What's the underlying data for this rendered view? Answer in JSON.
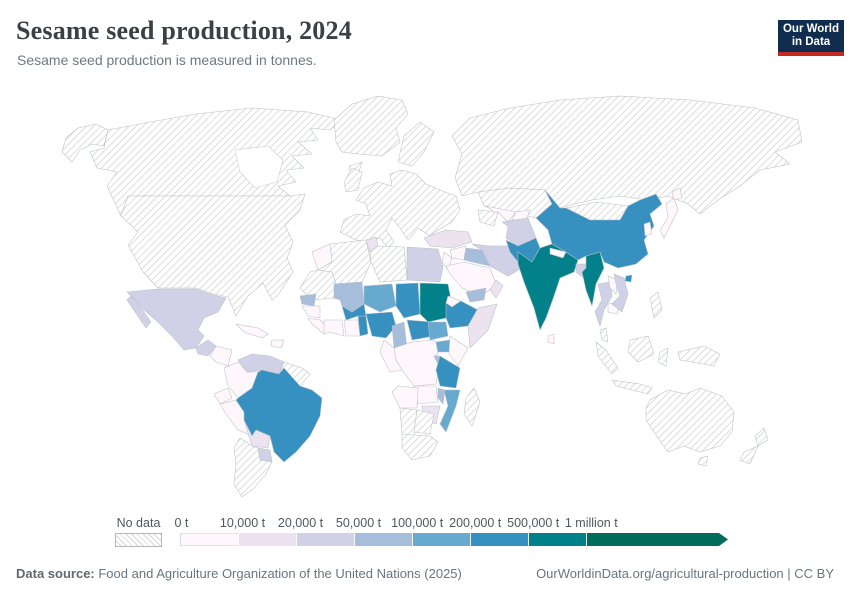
{
  "header": {
    "title": "Sesame seed production, 2024",
    "subtitle": "Sesame seed production is measured in tonnes.",
    "logo_line1": "Our World",
    "logo_line2": "in Data"
  },
  "footer": {
    "source_label": "Data source:",
    "source_text": " Food and Agriculture Organization of the United Nations (2025)",
    "right_text": "OurWorldinData.org/agricultural-production | CC BY"
  },
  "chart_data": {
    "type": "choropleth-world-map",
    "title": "Sesame seed production, 2024",
    "unit": "tonnes",
    "year": "2024",
    "legend": {
      "no_data_label": "No data",
      "tick_labels": [
        "0 t",
        "10,000 t",
        "20,000 t",
        "50,000 t",
        "100,000 t",
        "200,000 t",
        "500,000 t",
        "1 million t"
      ],
      "bin_colors": [
        "#fff7fb",
        "#ece2f0",
        "#d0d1e6",
        "#a6bddb",
        "#67a9cf",
        "#3690c0",
        "#02818a",
        "#016c59"
      ],
      "no_data_pattern": "diagonal-hatch",
      "bin_ranges": [
        "0-10,000 t",
        "10,000-20,000 t",
        "20,000-50,000 t",
        "50,000-100,000 t",
        "100,000-200,000 t",
        "200,000-500,000 t",
        "500,000 t-1 million t",
        "over 1 million t"
      ]
    },
    "regions": [
      {
        "id": "united-states",
        "name": "United States",
        "bin": -1
      },
      {
        "id": "canada",
        "name": "Canada",
        "bin": -1
      },
      {
        "id": "greenland",
        "name": "Greenland",
        "bin": -1
      },
      {
        "id": "iceland",
        "name": "Iceland",
        "bin": -1
      },
      {
        "id": "mexico",
        "name": "Mexico",
        "bin": 2
      },
      {
        "id": "guatemala",
        "name": "Guatemala",
        "bin": 2
      },
      {
        "id": "honduras-nicaragua",
        "name": "Honduras & Nicaragua",
        "bin": 0
      },
      {
        "id": "costa-rica-panama",
        "name": "Costa Rica & Panama",
        "bin": 0
      },
      {
        "id": "cuba",
        "name": "Cuba",
        "bin": 0
      },
      {
        "id": "hispaniola",
        "name": "Haiti & Dominican Republic",
        "bin": 0
      },
      {
        "id": "venezuela",
        "name": "Venezuela",
        "bin": 2
      },
      {
        "id": "colombia",
        "name": "Colombia",
        "bin": 0
      },
      {
        "id": "guianas",
        "name": "Guyana & Suriname",
        "bin": -1
      },
      {
        "id": "ecuador",
        "name": "Ecuador",
        "bin": 0
      },
      {
        "id": "peru",
        "name": "Peru",
        "bin": 0
      },
      {
        "id": "brazil",
        "name": "Brazil",
        "bin": 5
      },
      {
        "id": "bolivia",
        "name": "Bolivia",
        "bin": 1
      },
      {
        "id": "paraguay",
        "name": "Paraguay",
        "bin": 2
      },
      {
        "id": "argentina-chile",
        "name": "Argentina & Chile",
        "bin": -1
      },
      {
        "id": "united-kingdom",
        "name": "United Kingdom & Ireland",
        "bin": -1
      },
      {
        "id": "scandinavia",
        "name": "Scandinavia",
        "bin": -1
      },
      {
        "id": "europe",
        "name": "Europe",
        "bin": -1
      },
      {
        "id": "russia",
        "name": "Russia",
        "bin": -1
      },
      {
        "id": "kazakhstan",
        "name": "Kazakhstan",
        "bin": -1
      },
      {
        "id": "mongolia",
        "name": "Mongolia",
        "bin": -1
      },
      {
        "id": "turkmenistan",
        "name": "Turkmenistan",
        "bin": -1
      },
      {
        "id": "uzbekistan",
        "name": "Uzbekistan",
        "bin": 0
      },
      {
        "id": "kyrgyzstan-tajikistan",
        "name": "Kyrgyzstan & Tajikistan",
        "bin": 0
      },
      {
        "id": "turkey",
        "name": "Turkey",
        "bin": 1
      },
      {
        "id": "syria",
        "name": "Syria",
        "bin": 0
      },
      {
        "id": "levant",
        "name": "Jordan & Israel",
        "bin": 0
      },
      {
        "id": "iraq",
        "name": "Iraq",
        "bin": 3
      },
      {
        "id": "saudi-arabia",
        "name": "Saudi Arabia",
        "bin": 0
      },
      {
        "id": "yemen",
        "name": "Yemen",
        "bin": 3
      },
      {
        "id": "oman",
        "name": "Oman",
        "bin": 1
      },
      {
        "id": "iran",
        "name": "Iran",
        "bin": 2
      },
      {
        "id": "afghanistan",
        "name": "Afghanistan",
        "bin": 2
      },
      {
        "id": "pakistan",
        "name": "Pakistan",
        "bin": 5
      },
      {
        "id": "india",
        "name": "India",
        "bin": 6
      },
      {
        "id": "sri-lanka",
        "name": "Sri Lanka",
        "bin": 0
      },
      {
        "id": "nepal",
        "name": "Nepal",
        "bin": 0
      },
      {
        "id": "bangladesh",
        "name": "Bangladesh",
        "bin": 2
      },
      {
        "id": "myanmar",
        "name": "Myanmar",
        "bin": 6
      },
      {
        "id": "china",
        "name": "China",
        "bin": 5
      },
      {
        "id": "hainan",
        "name": "Hainan (China)",
        "bin": 5
      },
      {
        "id": "korea",
        "name": "Korea",
        "bin": 0
      },
      {
        "id": "japan",
        "name": "Japan",
        "bin": 0
      },
      {
        "id": "thailand",
        "name": "Thailand",
        "bin": 2
      },
      {
        "id": "laos",
        "name": "Laos",
        "bin": 0
      },
      {
        "id": "cambodia",
        "name": "Cambodia",
        "bin": 0
      },
      {
        "id": "vietnam",
        "name": "Vietnam",
        "bin": 2
      },
      {
        "id": "malaysia",
        "name": "Malaysia",
        "bin": -1
      },
      {
        "id": "indonesia",
        "name": "Indonesia",
        "bin": -1
      },
      {
        "id": "philippines",
        "name": "Philippines",
        "bin": -1
      },
      {
        "id": "new-guinea",
        "name": "Papua New Guinea",
        "bin": -1
      },
      {
        "id": "australia",
        "name": "Australia",
        "bin": -1
      },
      {
        "id": "new-zealand",
        "name": "New Zealand",
        "bin": -1
      },
      {
        "id": "morocco",
        "name": "Morocco",
        "bin": 0
      },
      {
        "id": "western-sahara-mauritania",
        "name": "Western Sahara & Mauritania",
        "bin": -1
      },
      {
        "id": "algeria",
        "name": "Algeria",
        "bin": -1
      },
      {
        "id": "tunisia",
        "name": "Tunisia",
        "bin": 1
      },
      {
        "id": "libya",
        "name": "Libya",
        "bin": -1
      },
      {
        "id": "egypt",
        "name": "Egypt",
        "bin": 2
      },
      {
        "id": "mali",
        "name": "Mali",
        "bin": 3
      },
      {
        "id": "niger",
        "name": "Niger",
        "bin": 4
      },
      {
        "id": "chad",
        "name": "Chad",
        "bin": 5
      },
      {
        "id": "sudan",
        "name": "Sudan",
        "bin": 6
      },
      {
        "id": "eritrea",
        "name": "Eritrea",
        "bin": 0
      },
      {
        "id": "senegal",
        "name": "Senegal",
        "bin": 3
      },
      {
        "id": "guinea",
        "name": "Guinea",
        "bin": 0
      },
      {
        "id": "sierra-leone-liberia",
        "name": "Sierra Leone & Liberia",
        "bin": 0
      },
      {
        "id": "cote-divoire",
        "name": "Côte d'Ivoire",
        "bin": 0
      },
      {
        "id": "ghana",
        "name": "Ghana",
        "bin": 0
      },
      {
        "id": "togo-benin",
        "name": "Togo & Benin",
        "bin": 5
      },
      {
        "id": "burkina-faso",
        "name": "Burkina Faso",
        "bin": 5
      },
      {
        "id": "nigeria",
        "name": "Nigeria",
        "bin": 5
      },
      {
        "id": "cameroon",
        "name": "Cameroon",
        "bin": 3
      },
      {
        "id": "central-african-republic",
        "name": "Central African Republic",
        "bin": 5
      },
      {
        "id": "ethiopia",
        "name": "Ethiopia",
        "bin": 5
      },
      {
        "id": "somalia",
        "name": "Somalia",
        "bin": 1
      },
      {
        "id": "south-sudan",
        "name": "South Sudan",
        "bin": 4
      },
      {
        "id": "uganda",
        "name": "Uganda",
        "bin": 4
      },
      {
        "id": "kenya",
        "name": "Kenya",
        "bin": 0
      },
      {
        "id": "drc",
        "name": "Democratic Republic of Congo",
        "bin": 0
      },
      {
        "id": "gabon-congo",
        "name": "Gabon & Congo",
        "bin": 0
      },
      {
        "id": "tanzania",
        "name": "Tanzania",
        "bin": 5
      },
      {
        "id": "rwanda-burundi",
        "name": "Rwanda & Burundi",
        "bin": 3
      },
      {
        "id": "mozambique",
        "name": "Mozambique",
        "bin": 4
      },
      {
        "id": "malawi",
        "name": "Malawi",
        "bin": 3
      },
      {
        "id": "zambia",
        "name": "Zambia",
        "bin": 0
      },
      {
        "id": "zimbabwe",
        "name": "Zimbabwe",
        "bin": 1
      },
      {
        "id": "angola",
        "name": "Angola",
        "bin": 0
      },
      {
        "id": "namibia",
        "name": "Namibia",
        "bin": -1
      },
      {
        "id": "botswana",
        "name": "Botswana",
        "bin": -1
      },
      {
        "id": "south-africa",
        "name": "South Africa",
        "bin": -1
      },
      {
        "id": "madagascar",
        "name": "Madagascar",
        "bin": -1
      }
    ]
  }
}
